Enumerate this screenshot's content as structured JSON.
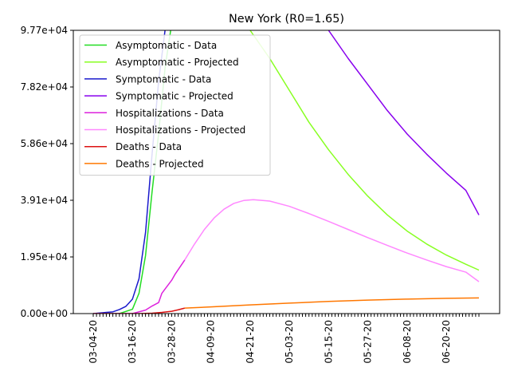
{
  "chart_data": {
    "type": "line",
    "title": "New York (R0=1.65)",
    "xlabel": "",
    "ylabel": "",
    "x_start_date": "2020-03-04",
    "x_end_date": "2020-06-30",
    "ylim": [
      0,
      97700
    ],
    "y_ticks": [
      0,
      19540,
      39080,
      58620,
      78160,
      97700
    ],
    "y_tick_labels": [
      "0.00e+00",
      "1.95e+04",
      "3.91e+04",
      "5.86e+04",
      "7.82e+04",
      "9.77e+04"
    ],
    "x_tick_labels": [
      "03-04-20",
      "03-16-20",
      "03-28-20",
      "04-09-20",
      "04-21-20",
      "05-03-20",
      "05-15-20",
      "05-27-20",
      "06-08-20",
      "06-20-20"
    ],
    "grid": false,
    "legend_position": "upper-left",
    "series": [
      {
        "name": "Asymptomatic - Data",
        "color": "#22dd22",
        "points": [
          [
            "2020-03-04",
            0
          ],
          [
            "2020-03-08",
            0
          ],
          [
            "2020-03-12",
            0
          ],
          [
            "2020-03-16",
            1500
          ],
          [
            "2020-03-18",
            7000
          ],
          [
            "2020-03-20",
            20000
          ],
          [
            "2020-03-22",
            42000
          ],
          [
            "2020-03-24",
            62000
          ],
          [
            "2020-03-26",
            85000
          ],
          [
            "2020-03-28",
            100000
          ]
        ]
      },
      {
        "name": "Asymptomatic - Projected",
        "color": "#88ff22",
        "points": [
          [
            "2020-04-21",
            97700
          ],
          [
            "2020-04-27",
            88000
          ],
          [
            "2020-05-03",
            77000
          ],
          [
            "2020-05-09",
            66000
          ],
          [
            "2020-05-15",
            56500
          ],
          [
            "2020-05-21",
            48000
          ],
          [
            "2020-05-27",
            40500
          ],
          [
            "2020-06-02",
            34000
          ],
          [
            "2020-06-08",
            28500
          ],
          [
            "2020-06-14",
            24000
          ],
          [
            "2020-06-20",
            20200
          ],
          [
            "2020-06-26",
            17000
          ],
          [
            "2020-06-30",
            15000
          ]
        ]
      },
      {
        "name": "Symptomatic - Data",
        "color": "#1a1acc",
        "points": [
          [
            "2020-03-04",
            0
          ],
          [
            "2020-03-06",
            200
          ],
          [
            "2020-03-08",
            400
          ],
          [
            "2020-03-10",
            600
          ],
          [
            "2020-03-12",
            1400
          ],
          [
            "2020-03-14",
            2500
          ],
          [
            "2020-03-16",
            5000
          ],
          [
            "2020-03-18",
            12000
          ],
          [
            "2020-03-20",
            28000
          ],
          [
            "2020-03-22",
            55000
          ],
          [
            "2020-03-24",
            80000
          ],
          [
            "2020-03-26",
            98000
          ]
        ]
      },
      {
        "name": "Symptomatic - Projected",
        "color": "#8800ee",
        "points": [
          [
            "2020-05-15",
            97700
          ],
          [
            "2020-05-21",
            88000
          ],
          [
            "2020-05-27",
            79000
          ],
          [
            "2020-06-02",
            70000
          ],
          [
            "2020-06-08",
            62000
          ],
          [
            "2020-06-14",
            55000
          ],
          [
            "2020-06-20",
            48500
          ],
          [
            "2020-06-26",
            42500
          ],
          [
            "2020-06-30",
            34000
          ]
        ]
      },
      {
        "name": "Hospitalizations - Data",
        "color": "#dd22dd",
        "points": [
          [
            "2020-03-04",
            0
          ],
          [
            "2020-03-08",
            0
          ],
          [
            "2020-03-12",
            0
          ],
          [
            "2020-03-16",
            0
          ],
          [
            "2020-03-20",
            1200
          ],
          [
            "2020-03-22",
            2600
          ],
          [
            "2020-03-24",
            3800
          ],
          [
            "2020-03-25",
            7000
          ],
          [
            "2020-03-26",
            8500
          ],
          [
            "2020-03-28",
            11500
          ],
          [
            "2020-03-29",
            13500
          ],
          [
            "2020-04-01",
            18500
          ]
        ]
      },
      {
        "name": "Hospitalizations - Projected",
        "color": "#ff88ff",
        "points": [
          [
            "2020-04-01",
            18500
          ],
          [
            "2020-04-04",
            24000
          ],
          [
            "2020-04-07",
            29000
          ],
          [
            "2020-04-10",
            33000
          ],
          [
            "2020-04-13",
            36000
          ],
          [
            "2020-04-16",
            38000
          ],
          [
            "2020-04-19",
            39000
          ],
          [
            "2020-04-22",
            39300
          ],
          [
            "2020-04-27",
            38800
          ],
          [
            "2020-05-03",
            37000
          ],
          [
            "2020-05-09",
            34500
          ],
          [
            "2020-05-15",
            31800
          ],
          [
            "2020-05-21",
            29000
          ],
          [
            "2020-05-27",
            26200
          ],
          [
            "2020-06-02",
            23500
          ],
          [
            "2020-06-08",
            20900
          ],
          [
            "2020-06-14",
            18500
          ],
          [
            "2020-06-20",
            16200
          ],
          [
            "2020-06-26",
            14300
          ],
          [
            "2020-06-30",
            11000
          ]
        ]
      },
      {
        "name": "Deaths - Data",
        "color": "#dd1111",
        "points": [
          [
            "2020-03-04",
            0
          ],
          [
            "2020-03-12",
            0
          ],
          [
            "2020-03-18",
            0
          ],
          [
            "2020-03-22",
            150
          ],
          [
            "2020-03-25",
            400
          ],
          [
            "2020-03-28",
            800
          ],
          [
            "2020-03-30",
            1300
          ],
          [
            "2020-04-01",
            1900
          ]
        ]
      },
      {
        "name": "Deaths - Projected",
        "color": "#ff7700",
        "points": [
          [
            "2020-04-01",
            1900
          ],
          [
            "2020-04-09",
            2300
          ],
          [
            "2020-04-21",
            3000
          ],
          [
            "2020-05-03",
            3600
          ],
          [
            "2020-05-15",
            4200
          ],
          [
            "2020-05-27",
            4650
          ],
          [
            "2020-06-08",
            5000
          ],
          [
            "2020-06-20",
            5250
          ],
          [
            "2020-06-30",
            5400
          ]
        ]
      }
    ]
  }
}
